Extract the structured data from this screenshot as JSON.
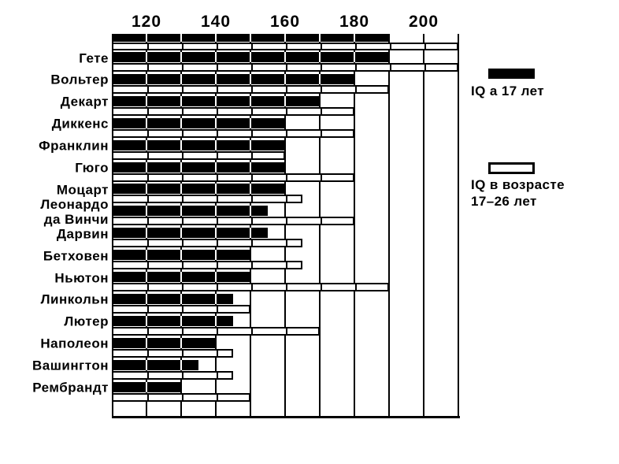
{
  "chart_data": {
    "type": "bar",
    "orientation": "horizontal",
    "value_axis": {
      "min": 110,
      "max": 210,
      "tick_labels": [
        "120",
        "140",
        "160",
        "180",
        "200"
      ],
      "tick_values": [
        120,
        140,
        160,
        180,
        200
      ],
      "gridline_step": 10,
      "grid": "on"
    },
    "series": [
      {
        "name": "IQ а 17 лет",
        "color": "#000000",
        "style": "solid-black"
      },
      {
        "name": "IQ в возрасте 17–26 лет",
        "color": "#ffffff",
        "style": "white-outlined"
      }
    ],
    "scale_band": {
      "iq_17": 190,
      "iq_17_26": 210
    },
    "rows": [
      {
        "label": "Гете",
        "iq_17": 190,
        "iq_17_26": 210
      },
      {
        "label": "Вольтер",
        "iq_17": 180,
        "iq_17_26": 190
      },
      {
        "label": "Декарт",
        "iq_17": 170,
        "iq_17_26": 180
      },
      {
        "label": "Диккенс",
        "iq_17": 160,
        "iq_17_26": 180
      },
      {
        "label": "Франклин",
        "iq_17": 160,
        "iq_17_26": 160
      },
      {
        "label": "Гюго",
        "iq_17": 160,
        "iq_17_26": 180
      },
      {
        "label": "Моцарт",
        "iq_17": 160,
        "iq_17_26": 165
      },
      {
        "label": "Леонардо\nда Винчи",
        "iq_17": 155,
        "iq_17_26": 180
      },
      {
        "label": "Дарвин",
        "iq_17": 155,
        "iq_17_26": 165
      },
      {
        "label": "Бетховен",
        "iq_17": 150,
        "iq_17_26": 165
      },
      {
        "label": "Ньютон",
        "iq_17": 150,
        "iq_17_26": 190
      },
      {
        "label": "Линкольн",
        "iq_17": 145,
        "iq_17_26": 150
      },
      {
        "label": "Лютер",
        "iq_17": 145,
        "iq_17_26": 170
      },
      {
        "label": "Наполеон",
        "iq_17": 140,
        "iq_17_26": 145
      },
      {
        "label": "Вашингтон",
        "iq_17": 135,
        "iq_17_26": 145
      },
      {
        "label": "Рембрандт",
        "iq_17": 130,
        "iq_17_26": 150
      }
    ],
    "legend": {
      "position": "right",
      "item1_label": "IQ а 17 лет",
      "item2_label": "IQ в возрасте\n17–26 лет"
    }
  }
}
